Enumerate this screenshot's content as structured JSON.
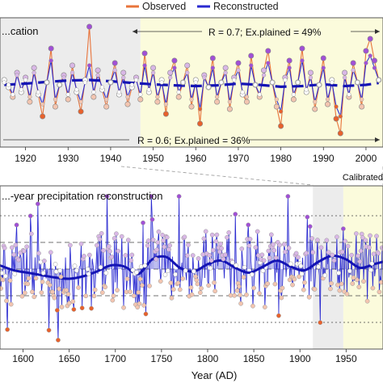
{
  "legend": {
    "observed_label": "Observed",
    "reconstructed_label": "Reconstructed",
    "observed_color": "#e8743b",
    "reconstructed_color": "#2a2ad0"
  },
  "colors": {
    "observed": "#e8743b",
    "reconstructed": "#2a2ad0",
    "smooth": "#1414b4",
    "high_point": "#a14fd6",
    "low_point": "#e8612c",
    "point_light": "#d9b7e6",
    "point_pale": "#f3c5b0",
    "calibration_bg": "#ececec",
    "verification_bg": "#fbfbdc"
  },
  "chart_data": [
    {
      "type": "line",
      "title": "...cation",
      "x_ticks": [
        "1920",
        "1930",
        "1940",
        "1950",
        "1960",
        "1970",
        "1980",
        "1990",
        "2000"
      ],
      "xlim": [
        1914,
        2004
      ],
      "annotations": [
        "R = 0.7; Ex.plained = 49%",
        "R = 0.6; Ex.plained = 36%",
        "Calibrated"
      ],
      "shaded_regions": [
        {
          "label": "calibration",
          "from": 1914,
          "to": 1947
        },
        {
          "label": "verification",
          "from": 1947,
          "to": 2004
        }
      ],
      "series": [
        {
          "name": "Observed",
          "x": [
            1915,
            1916,
            1917,
            1918,
            1919,
            1920,
            1921,
            1922,
            1923,
            1924,
            1925,
            1926,
            1927,
            1928,
            1929,
            1930,
            1931,
            1932,
            1933,
            1934,
            1935,
            1936,
            1937,
            1938,
            1939,
            1940,
            1941,
            1942,
            1943,
            1944,
            1945,
            1946,
            1947,
            1948,
            1949,
            1950,
            1951,
            1952,
            1953,
            1954,
            1955,
            1956,
            1957,
            1958,
            1959,
            1960,
            1961,
            1962,
            1963,
            1964,
            1965,
            1966,
            1967,
            1968,
            1969,
            1970,
            1971,
            1972,
            1973,
            1974,
            1975,
            1976,
            1977,
            1978,
            1979,
            1980,
            1981,
            1982,
            1983,
            1984,
            1985,
            1986,
            1987,
            1988,
            1989,
            1990,
            1991,
            1992,
            1993,
            1994,
            1995,
            1996,
            1997,
            1998,
            1999,
            2000,
            2001,
            2002,
            2003
          ],
          "values": [
            0.3,
            0.0,
            -0.4,
            0.6,
            -0.2,
            0.4,
            -0.6,
            0.8,
            -0.3,
            -1.2,
            0.2,
            1.6,
            -0.8,
            0.1,
            0.5,
            -0.5,
            0.9,
            -0.2,
            -1.0,
            0.3,
            2.5,
            -0.4,
            0.7,
            -0.1,
            -0.8,
            0.2,
            1.0,
            -0.3,
            0.6,
            -0.7,
            0.0,
            0.4,
            -0.5,
            1.4,
            -0.2,
            0.8,
            -0.6,
            0.3,
            -1.1,
            0.6,
            1.1,
            -0.4,
            0.2,
            0.9,
            -0.8,
            0.3,
            -1.5,
            0.5,
            0.0,
            1.2,
            -0.6,
            0.2,
            0.8,
            -0.9,
            0.4,
            1.0,
            -0.3,
            -0.6,
            1.3,
            0.1,
            -0.4,
            0.7,
            1.5,
            0.2,
            -0.8,
            -1.6,
            0.4,
            1.1,
            -0.5,
            0.2,
            1.6,
            -0.2,
            0.6,
            -0.9,
            0.1,
            1.2,
            -0.7,
            0.3,
            -1.3,
            -1.9,
            0.6,
            -0.4,
            1.0,
            0.2,
            -0.8,
            1.5,
            2.0,
            1.1,
            0.3
          ]
        },
        {
          "name": "Reconstructed",
          "x": [
            1915,
            1916,
            1917,
            1918,
            1919,
            1920,
            1921,
            1922,
            1923,
            1924,
            1925,
            1926,
            1927,
            1928,
            1929,
            1930,
            1931,
            1932,
            1933,
            1934,
            1935,
            1936,
            1937,
            1938,
            1939,
            1940,
            1941,
            1942,
            1943,
            1944,
            1945,
            1946,
            1947,
            1948,
            1949,
            1950,
            1951,
            1952,
            1953,
            1954,
            1955,
            1956,
            1957,
            1958,
            1959,
            1960,
            1961,
            1962,
            1963,
            1964,
            1965,
            1966,
            1967,
            1968,
            1969,
            1970,
            1971,
            1972,
            1973,
            1974,
            1975,
            1976,
            1977,
            1978,
            1979,
            1980,
            1981,
            1982,
            1983,
            1984,
            1985,
            1986,
            1987,
            1988,
            1989,
            1990,
            1991,
            1992,
            1993,
            1994,
            1995,
            1996,
            1997,
            1998,
            1999,
            2000,
            2001,
            2002,
            2003
          ],
          "values": [
            0.2,
            0.1,
            -0.3,
            0.5,
            -0.1,
            0.3,
            -0.4,
            0.6,
            -0.2,
            -0.7,
            0.2,
            1.1,
            -0.5,
            0.1,
            0.4,
            -0.3,
            0.6,
            -0.1,
            -0.6,
            0.2,
            0.9,
            -0.2,
            0.5,
            0.0,
            -0.5,
            0.2,
            0.7,
            -0.2,
            0.4,
            -0.4,
            0.1,
            0.3,
            -0.3,
            0.9,
            -0.1,
            0.6,
            -0.4,
            0.2,
            -0.7,
            0.4,
            0.8,
            -0.2,
            0.2,
            0.6,
            -0.5,
            0.2,
            -0.9,
            0.4,
            0.0,
            0.8,
            -0.4,
            0.2,
            0.6,
            -0.6,
            0.3,
            0.7,
            -0.2,
            -0.4,
            0.9,
            0.1,
            -0.3,
            0.5,
            1.0,
            0.2,
            -0.5,
            -1.0,
            0.3,
            0.8,
            -0.3,
            0.2,
            1.1,
            -0.1,
            0.4,
            -0.6,
            0.1,
            0.8,
            -0.5,
            0.2,
            -0.8,
            -1.2,
            0.4,
            -0.3,
            0.7,
            0.2,
            -0.5,
            1.0,
            1.3,
            0.8,
            0.3
          ]
        },
        {
          "name": "smooth",
          "x": [
            1915,
            1920,
            1925,
            1930,
            1935,
            1940,
            1945,
            1950,
            1955,
            1960,
            1965,
            1970,
            1975,
            1980,
            1985,
            1990,
            1995,
            2000,
            2003
          ],
          "values": [
            0.1,
            0.15,
            0.22,
            0.28,
            0.3,
            0.25,
            0.18,
            0.12,
            0.08,
            0.05,
            0.08,
            0.15,
            0.1,
            0.02,
            0.05,
            0.12,
            0.05,
            0.1,
            0.18
          ]
        }
      ]
    },
    {
      "type": "line",
      "title": "...-year precipitation reconstruction",
      "xlabel": "Year (AD)",
      "x_ticks": [
        "1600",
        "1650",
        "1700",
        "1750",
        "1800",
        "1850",
        "1900",
        "1950"
      ],
      "xlim": [
        1575,
        1990
      ],
      "reference_lines": [
        2.2,
        1.1,
        0.0,
        -1.1,
        -2.2
      ],
      "shaded_regions": [
        {
          "label": "calibration",
          "from": 1914,
          "to": 1947
        },
        {
          "label": "verification",
          "from": 1947,
          "to": 1990
        }
      ],
      "smooth_curve": {
        "x": [
          1575,
          1590,
          1605,
          1620,
          1635,
          1650,
          1665,
          1680,
          1695,
          1710,
          1725,
          1740,
          1755,
          1770,
          1785,
          1800,
          1815,
          1830,
          1845,
          1860,
          1875,
          1890,
          1905,
          1920,
          1935,
          1950,
          1965,
          1980,
          1990
        ],
        "values": [
          0.15,
          -0.05,
          -0.15,
          -0.25,
          -0.35,
          -0.4,
          -0.3,
          -0.1,
          0.15,
          0.1,
          -0.2,
          0.4,
          0.5,
          0.05,
          -0.1,
          0.2,
          0.35,
          0.05,
          -0.15,
          0.1,
          0.35,
          0.1,
          -0.05,
          0.3,
          0.55,
          0.4,
          0.05,
          0.2,
          0.3
        ]
      }
    }
  ]
}
